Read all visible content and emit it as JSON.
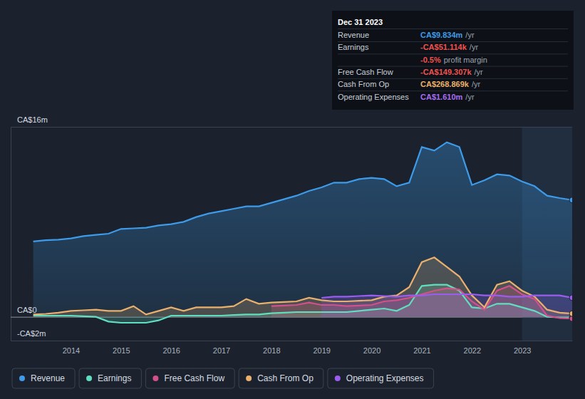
{
  "chart_data": {
    "type": "line",
    "x": [
      2013.25,
      2013.5,
      2013.75,
      2014,
      2014.25,
      2014.5,
      2014.75,
      2015,
      2015.25,
      2015.5,
      2015.75,
      2016,
      2016.25,
      2016.5,
      2016.75,
      2017,
      2017.25,
      2017.5,
      2017.75,
      2018,
      2018.25,
      2018.5,
      2018.75,
      2019,
      2019.25,
      2019.5,
      2019.75,
      2020,
      2020.25,
      2020.5,
      2020.75,
      2021,
      2021.25,
      2021.5,
      2021.75,
      2022,
      2022.25,
      2022.5,
      2022.75,
      2023,
      2023.25,
      2023.5,
      2023.75,
      2024
    ],
    "series": [
      {
        "name": "Revenue",
        "color": "#3d9be9",
        "values": [
          6.35,
          6.45,
          6.5,
          6.6,
          6.8,
          6.9,
          7.0,
          7.4,
          7.45,
          7.5,
          7.7,
          7.8,
          8.0,
          8.4,
          8.7,
          8.9,
          9.1,
          9.3,
          9.3,
          9.6,
          9.9,
          10.2,
          10.6,
          10.9,
          11.3,
          11.3,
          11.6,
          11.7,
          11.6,
          11.0,
          11.3,
          14.3,
          14.0,
          14.7,
          14.3,
          11.1,
          11.5,
          12.0,
          11.9,
          11.4,
          11.0,
          10.2,
          10.0,
          9.834
        ]
      },
      {
        "name": "Earnings",
        "color": "#5fdfc0",
        "values": [
          0.1,
          0.1,
          0.1,
          0.1,
          0.05,
          0.0,
          -0.4,
          -0.5,
          -0.5,
          -0.5,
          -0.3,
          0.1,
          0.1,
          0.1,
          0.1,
          0.1,
          0.15,
          0.2,
          0.2,
          0.3,
          0.35,
          0.4,
          0.4,
          0.4,
          0.4,
          0.4,
          0.5,
          0.6,
          0.7,
          0.5,
          1.0,
          2.6,
          2.7,
          2.7,
          2.2,
          0.8,
          0.7,
          1.1,
          1.1,
          0.8,
          0.5,
          0.0,
          -0.05,
          -0.051114
        ]
      },
      {
        "name": "Free Cash Flow",
        "color": "#d4508a",
        "values": [
          null,
          null,
          null,
          null,
          null,
          null,
          null,
          null,
          null,
          null,
          null,
          null,
          null,
          null,
          null,
          null,
          null,
          null,
          null,
          0.9,
          0.95,
          1.0,
          1.2,
          1.0,
          1.0,
          0.9,
          0.95,
          1.0,
          1.3,
          1.4,
          1.6,
          1.9,
          2.2,
          2.4,
          2.3,
          1.3,
          0.6,
          2.2,
          2.6,
          1.9,
          1.5,
          0.1,
          -0.1,
          -0.149307
        ]
      },
      {
        "name": "Cash From Op",
        "color": "#eab06c",
        "values": [
          0.2,
          0.25,
          0.35,
          0.5,
          0.55,
          0.6,
          0.5,
          0.5,
          0.9,
          0.2,
          0.5,
          0.8,
          0.5,
          0.8,
          0.8,
          0.8,
          0.9,
          1.5,
          1.1,
          1.2,
          1.25,
          1.3,
          1.6,
          1.4,
          1.3,
          1.3,
          1.35,
          1.4,
          1.7,
          1.8,
          2.5,
          4.6,
          5.0,
          4.2,
          3.4,
          1.8,
          0.8,
          2.7,
          3.0,
          2.2,
          1.7,
          0.6,
          0.35,
          0.268869
        ]
      },
      {
        "name": "Operating Expenses",
        "color": "#9d5cf0",
        "values": [
          null,
          null,
          null,
          null,
          null,
          null,
          null,
          null,
          null,
          null,
          null,
          null,
          null,
          null,
          null,
          null,
          null,
          null,
          null,
          null,
          null,
          null,
          null,
          1.6,
          1.7,
          1.7,
          1.75,
          1.8,
          1.75,
          1.7,
          1.8,
          1.8,
          1.9,
          1.9,
          1.9,
          1.9,
          1.8,
          1.8,
          1.7,
          1.7,
          1.8,
          1.8,
          1.8,
          1.61
        ]
      }
    ],
    "xlim": [
      2012.8,
      2024
    ],
    "xticks": [
      2014,
      2015,
      2016,
      2017,
      2018,
      2019,
      2020,
      2021,
      2022,
      2023
    ],
    "ylim": [
      -2,
      16
    ],
    "yticks": [
      {
        "value": -2,
        "label": "-CA$2m"
      },
      {
        "value": 0,
        "label": "CA$0"
      },
      {
        "value": 16,
        "label": "CA$16m"
      }
    ],
    "grid": true,
    "legend": "bottom",
    "tooltip": {
      "title": "Dec 31 2023",
      "rows": [
        {
          "label": "Revenue",
          "value": "CA$9.834m",
          "unit": "/yr",
          "color": "#3d9be9"
        },
        {
          "label": "Earnings",
          "value": "-CA$51.114k",
          "unit": "/yr",
          "color": "#f0514f"
        },
        {
          "value": "-0.5%",
          "unit": "profit margin",
          "color": "#f0514f"
        },
        {
          "label": "Free Cash Flow",
          "value": "-CA$149.307k",
          "unit": "/yr",
          "color": "#f0514f"
        },
        {
          "label": "Cash From Op",
          "value": "CA$268.869k",
          "unit": "/yr",
          "color": "#eab06c"
        },
        {
          "label": "Operating Expenses",
          "value": "CA$1.610m",
          "unit": "/yr",
          "color": "#a86ef0"
        }
      ]
    }
  }
}
